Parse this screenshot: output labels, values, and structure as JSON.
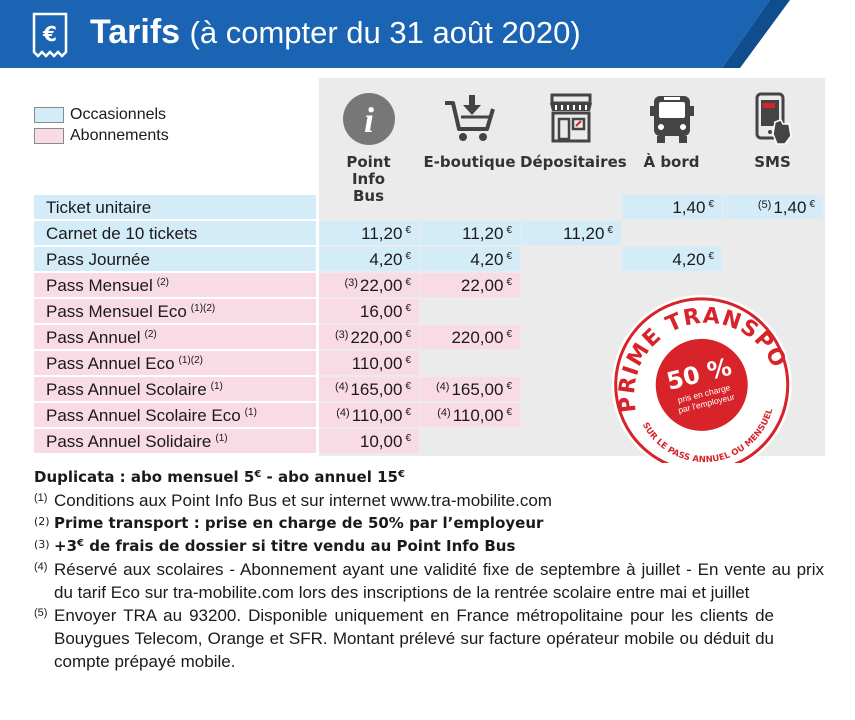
{
  "header": {
    "title": "Tarifs",
    "subtitle": "(à compter du 31 août 2020)",
    "icon": "euro-receipt-icon",
    "colors": {
      "band": "#1a64b3",
      "band_dark": "#0f4d8f"
    }
  },
  "legend": {
    "items": [
      {
        "label": "Occasionnels",
        "color": "#d4ecf7"
      },
      {
        "label": "Abonnements",
        "color": "#f9dbe6"
      }
    ]
  },
  "columns": [
    {
      "label": "Point Info Bus",
      "icon": "info-icon"
    },
    {
      "label": "E-boutique",
      "icon": "shopping-cart-icon"
    },
    {
      "label": "Dépositaires",
      "icon": "shop-icon"
    },
    {
      "label": "À bord",
      "icon": "bus-icon"
    },
    {
      "label": "SMS",
      "icon": "mobile-phone-icon"
    }
  ],
  "rows": [
    {
      "label": "Ticket unitaire",
      "label_note": "",
      "type": "occasionnel",
      "cells": [
        null,
        null,
        null,
        {
          "pre": "",
          "value": "1,40"
        },
        {
          "pre": "(5)",
          "value": "1,40"
        }
      ]
    },
    {
      "label": "Carnet de 10 tickets",
      "label_note": "",
      "type": "occasionnel",
      "cells": [
        {
          "pre": "",
          "value": "11,20"
        },
        {
          "pre": "",
          "value": "11,20"
        },
        {
          "pre": "",
          "value": "11,20"
        },
        null,
        null
      ]
    },
    {
      "label": "Pass Journée",
      "label_note": "",
      "type": "occasionnel",
      "cells": [
        {
          "pre": "",
          "value": "4,20"
        },
        {
          "pre": "",
          "value": "4,20"
        },
        null,
        {
          "pre": "",
          "value": "4,20"
        },
        null
      ]
    },
    {
      "label": "Pass Mensuel",
      "label_note": "(2)",
      "type": "abonnement",
      "cells": [
        {
          "pre": "(3)",
          "value": "22,00"
        },
        {
          "pre": "",
          "value": "22,00"
        },
        null,
        null,
        null
      ]
    },
    {
      "label": "Pass Mensuel Eco",
      "label_note": "(1)(2)",
      "type": "abonnement",
      "cells": [
        {
          "pre": "",
          "value": "16,00"
        },
        null,
        null,
        null,
        null
      ]
    },
    {
      "label": "Pass Annuel",
      "label_note": "(2)",
      "type": "abonnement",
      "cells": [
        {
          "pre": "(3)",
          "value": "220,00"
        },
        {
          "pre": "",
          "value": "220,00"
        },
        null,
        null,
        null
      ]
    },
    {
      "label": "Pass Annuel Eco",
      "label_note": "(1)(2)",
      "type": "abonnement",
      "cells": [
        {
          "pre": "",
          "value": "110,00"
        },
        null,
        null,
        null,
        null
      ]
    },
    {
      "label": "Pass Annuel Scolaire",
      "label_note": "(1)",
      "type": "abonnement",
      "cells": [
        {
          "pre": "(4)",
          "value": "165,00"
        },
        {
          "pre": "(4)",
          "value": "165,00"
        },
        null,
        null,
        null
      ]
    },
    {
      "label": "Pass Annuel Scolaire Eco",
      "label_note": "(1)",
      "type": "abonnement",
      "cells": [
        {
          "pre": "(4)",
          "value": "110,00"
        },
        {
          "pre": "(4)",
          "value": "110,00"
        },
        null,
        null,
        null
      ]
    },
    {
      "label": "Pass Annuel Solidaire",
      "label_note": "(1)",
      "type": "abonnement",
      "cells": [
        {
          "pre": "",
          "value": "10,00"
        },
        null,
        null,
        null,
        null
      ]
    }
  ],
  "currency": "€",
  "stamp": {
    "top_text": "PRIME TRANSPORT",
    "percent": "50 %",
    "line1": "pris en charge",
    "line2": "par l'employeur",
    "bottom_text": "SUR LE PASS ANNUEL OU MENSUEL",
    "color": "#d8232a"
  },
  "notes": {
    "duplicata_a": "Duplicata : abo mensuel 5",
    "duplicata_b": " - abo annuel 15",
    "items": [
      {
        "num": "(1)",
        "text": "Conditions aux Point Info Bus et sur internet www.tra-mobilite.com",
        "bold": false
      },
      {
        "num": "(2)",
        "text": "Prime transport : prise en charge de 50% par l’employeur",
        "bold": true
      },
      {
        "num": "(3)",
        "text_a": "+3",
        "text_b": " de frais de dossier si titre vendu au Point Info Bus",
        "bold": true
      },
      {
        "num": "(4)",
        "text": "Réservé aux scolaires - Abonnement ayant une validité fixe de septembre à juillet - En vente au prix du tarif Eco sur tra-mobilite.com lors des inscriptions de la rentrée scolaire entre mai et juillet",
        "bold": false
      },
      {
        "num": "(5)",
        "text": "Envoyer TRA au 93200. Disponible uniquement en France métropolitaine pour les clients de Bouygues Telecom, Orange et SFR. Montant prélevé sur facture opérateur mobile ou déduit du compte prépayé mobile.",
        "bold": false
      }
    ]
  }
}
